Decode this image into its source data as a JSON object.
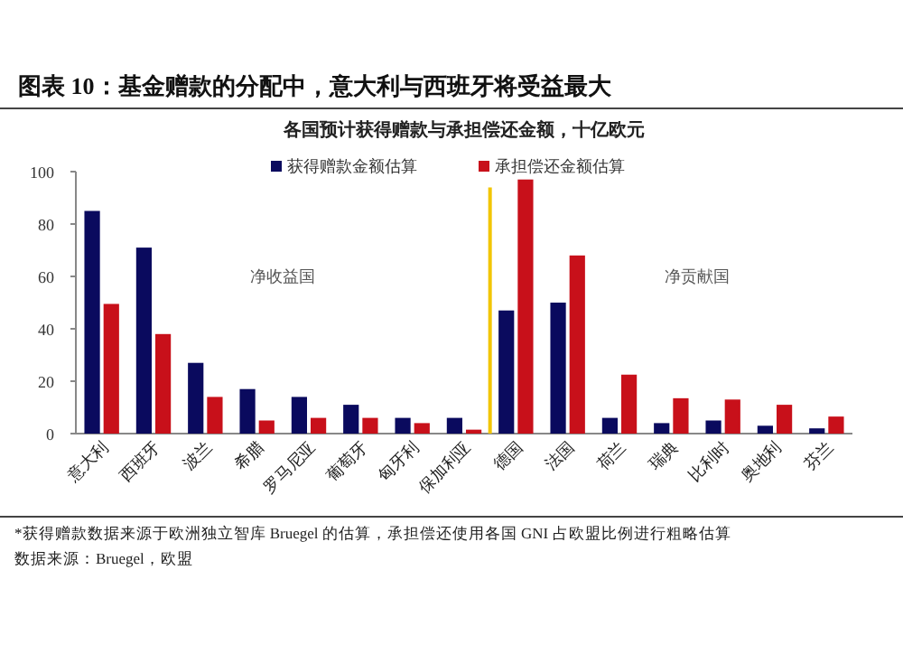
{
  "chart_data": {
    "type": "bar",
    "title": "图表 10：基金赠款的分配中，意大利与西班牙将受益最大",
    "subtitle": "各国预计获得赠款与承担偿还金额，十亿欧元",
    "categories": [
      "意大利",
      "西班牙",
      "波兰",
      "希腊",
      "罗马尼亚",
      "葡萄牙",
      "匈牙利",
      "保加利亚",
      "德国",
      "法国",
      "荷兰",
      "瑞典",
      "比利时",
      "奥地利",
      "芬兰"
    ],
    "series": [
      {
        "name": "获得赠款金额估算",
        "color": "#0a0a5e",
        "values": [
          85,
          71,
          27,
          17,
          14,
          11,
          6,
          6,
          47,
          50,
          6,
          4,
          5,
          3,
          2
        ]
      },
      {
        "name": "承担偿还金额估算",
        "color": "#c8101a",
        "values": [
          49.5,
          38,
          14,
          5,
          6,
          6,
          4,
          1.5,
          97,
          68,
          22.5,
          13.5,
          13,
          11,
          6.5
        ]
      }
    ],
    "ylim": [
      0,
      100
    ],
    "yticks": [
      0,
      20,
      40,
      60,
      80,
      100
    ],
    "grid": false,
    "legend": "top",
    "ref_lines": [
      {
        "axis": "x",
        "value": "德国",
        "color": "#f2c500"
      }
    ],
    "annotations": [
      "净收益国",
      "净贡献国",
      "*获得赠款数据来源于欧洲独立智库 Bruegel 的估算，承担偿还使用各国 GNI 占欧盟比例进行粗略估算",
      "数据来源：Bruegel，欧盟"
    ]
  }
}
